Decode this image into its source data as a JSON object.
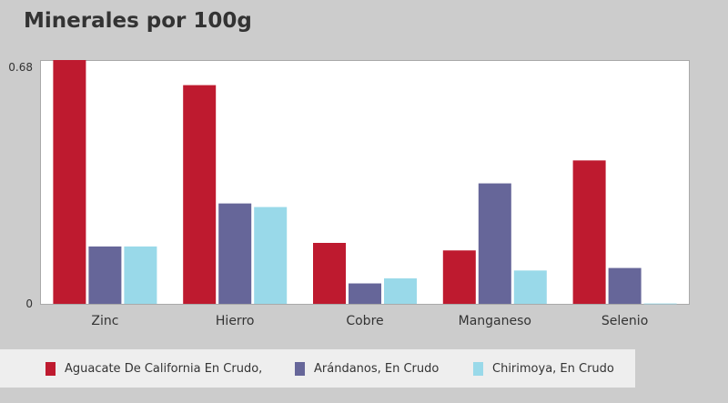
{
  "title": "Minerales por 100g",
  "colors": {
    "series0": "#be1a2f",
    "series1": "#666699",
    "series2": "#99d9e9"
  },
  "chart_data": {
    "type": "bar",
    "title": "Minerales por 100g",
    "categories": [
      "Zinc",
      "Hierro",
      "Cobre",
      "Manganeso",
      "Selenio"
    ],
    "series": [
      {
        "name": "Aguacate De California En Crudo,",
        "values": [
          0.68,
          0.61,
          0.17,
          0.149,
          0.4
        ]
      },
      {
        "name": "Arándanos, En Crudo",
        "values": [
          0.16,
          0.28,
          0.057,
          0.336,
          0.1
        ]
      },
      {
        "name": "Chirimoya, En Crudo",
        "values": [
          0.16,
          0.27,
          0.071,
          0.093,
          0.001
        ]
      }
    ],
    "yticks": [
      "0",
      "0.68"
    ],
    "ylim": [
      0,
      0.68
    ],
    "grid": false,
    "legend_position": "bottom"
  }
}
